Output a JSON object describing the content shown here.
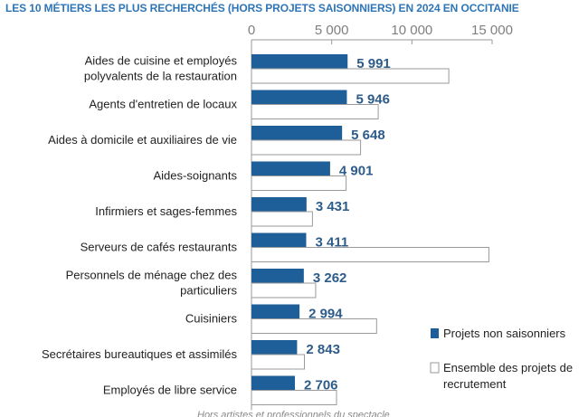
{
  "title": "LES 10 MÉTIERS LES PLUS RECHERCHÉS (HORS PROJETS SAISONNIERS) EN 2024 EN OCCITANIE",
  "footnote": "Hors artistes et professionnels du spectacle",
  "colors": {
    "primary_bar": "#1f5f99",
    "total_bar_fill": "#ffffff",
    "total_bar_stroke": "#9a9a9a",
    "value_label": "#2e5c8a",
    "title": "#2e75b6"
  },
  "chart_data": {
    "type": "bar",
    "orientation": "horizontal",
    "categories": [
      [
        "Aides de cuisine et employés",
        "polyvalents de la restauration"
      ],
      [
        "Agents d'entretien de locaux"
      ],
      [
        "Aides à domicile et auxiliaires de vie"
      ],
      [
        "Aides-soignants"
      ],
      [
        "Infirmiers et sages-femmes"
      ],
      [
        "Serveurs de cafés restaurants"
      ],
      [
        "Personnels de ménage chez des",
        "particuliers"
      ],
      [
        "Cuisiniers"
      ],
      [
        "Secrétaires bureautiques et assimilés"
      ],
      [
        "Employés de libre service"
      ]
    ],
    "series": [
      {
        "name": "Projets non saisonniers",
        "values": [
          5991,
          5946,
          5648,
          4901,
          3431,
          3411,
          3262,
          2994,
          2843,
          2706
        ],
        "value_labels": [
          "5 991",
          "5 946",
          "5 648",
          "4 901",
          "3 431",
          "3 411",
          "3 262",
          "2 994",
          "2 843",
          "2 706"
        ]
      },
      {
        "name": [
          "Ensemble des projets de",
          "recrutement"
        ],
        "values": [
          12300,
          7900,
          6800,
          5900,
          3800,
          14800,
          4000,
          7800,
          3300,
          5300
        ]
      }
    ],
    "xlim": [
      0,
      15000
    ],
    "ticks": [
      0,
      5000,
      10000,
      15000
    ],
    "tick_labels": [
      "0",
      "5 000",
      "10 000",
      "15 000"
    ],
    "axis_position": "top",
    "grid": false,
    "legend_position": "bottom-right"
  }
}
